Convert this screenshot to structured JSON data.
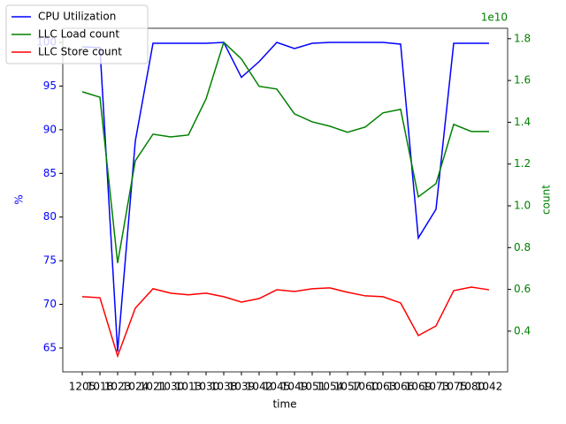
{
  "chart_data": {
    "type": "line",
    "xlabel": "time",
    "ylabel": "%",
    "y2label": "count",
    "y2_offset_label": "1e10",
    "categories": [
      "1205",
      "1018",
      "1023",
      "1024",
      "1021",
      "1030",
      "1013",
      "1030",
      "1038",
      "1039",
      "1042",
      "1045",
      "1049",
      "1051",
      "1054",
      "1057",
      "1060",
      "1063",
      "1066",
      "1069",
      "1073",
      "1075",
      "1080",
      "1042"
    ],
    "ylim": [
      62.27,
      101.62
    ],
    "yticks": [
      65,
      70,
      75,
      80,
      85,
      90,
      95,
      100
    ],
    "y2lim": [
      2050000000,
      18500000000
    ],
    "y2ticks": [
      {
        "value": 4000000000,
        "label": "0.4"
      },
      {
        "value": 6000000000,
        "label": "0.6"
      },
      {
        "value": 8000000000,
        "label": "0.8"
      },
      {
        "value": 10000000000,
        "label": "1.0"
      },
      {
        "value": 12000000000,
        "label": "1.2"
      },
      {
        "value": 14000000000,
        "label": "1.4"
      },
      {
        "value": 16000000000,
        "label": "1.6"
      },
      {
        "value": 18000000000,
        "label": "1.8"
      }
    ],
    "ycolor": "#0000ff",
    "y2color": "#008000",
    "legend": "upper left",
    "series": [
      {
        "name": "CPU Utilization",
        "color": "#0000ff",
        "axis": "y",
        "values": [
          99.5,
          99.4,
          64.6,
          88.7,
          99.9,
          99.9,
          99.9,
          99.9,
          100,
          96.0,
          97.8,
          100,
          99.3,
          99.9,
          100,
          100,
          100,
          100,
          99.8,
          77.6,
          80.9,
          99.9,
          99.9,
          99.9
        ]
      },
      {
        "name": "LLC Load count",
        "color": "#008000",
        "axis": "y2",
        "values": [
          15460000000,
          15200000000,
          7260000000,
          12160000000,
          13430000000,
          13300000000,
          13390000000,
          15120000000,
          17830000000,
          17030000000,
          15720000000,
          15590000000,
          14400000000,
          14020000000,
          13810000000,
          13520000000,
          13770000000,
          14450000000,
          14620000000,
          10430000000,
          11060000000,
          13900000000,
          13560000000,
          13560000000
        ]
      },
      {
        "name": "LLC Store count",
        "color": "#ff0000",
        "axis": "y2",
        "values": [
          5650000000,
          5600000000,
          2810000000,
          5100000000,
          6030000000,
          5820000000,
          5740000000,
          5820000000,
          5650000000,
          5390000000,
          5560000000,
          5980000000,
          5900000000,
          6030000000,
          6070000000,
          5860000000,
          5690000000,
          5650000000,
          5350000000,
          3790000000,
          4250000000,
          5940000000,
          6110000000,
          5980000000
        ]
      }
    ]
  }
}
